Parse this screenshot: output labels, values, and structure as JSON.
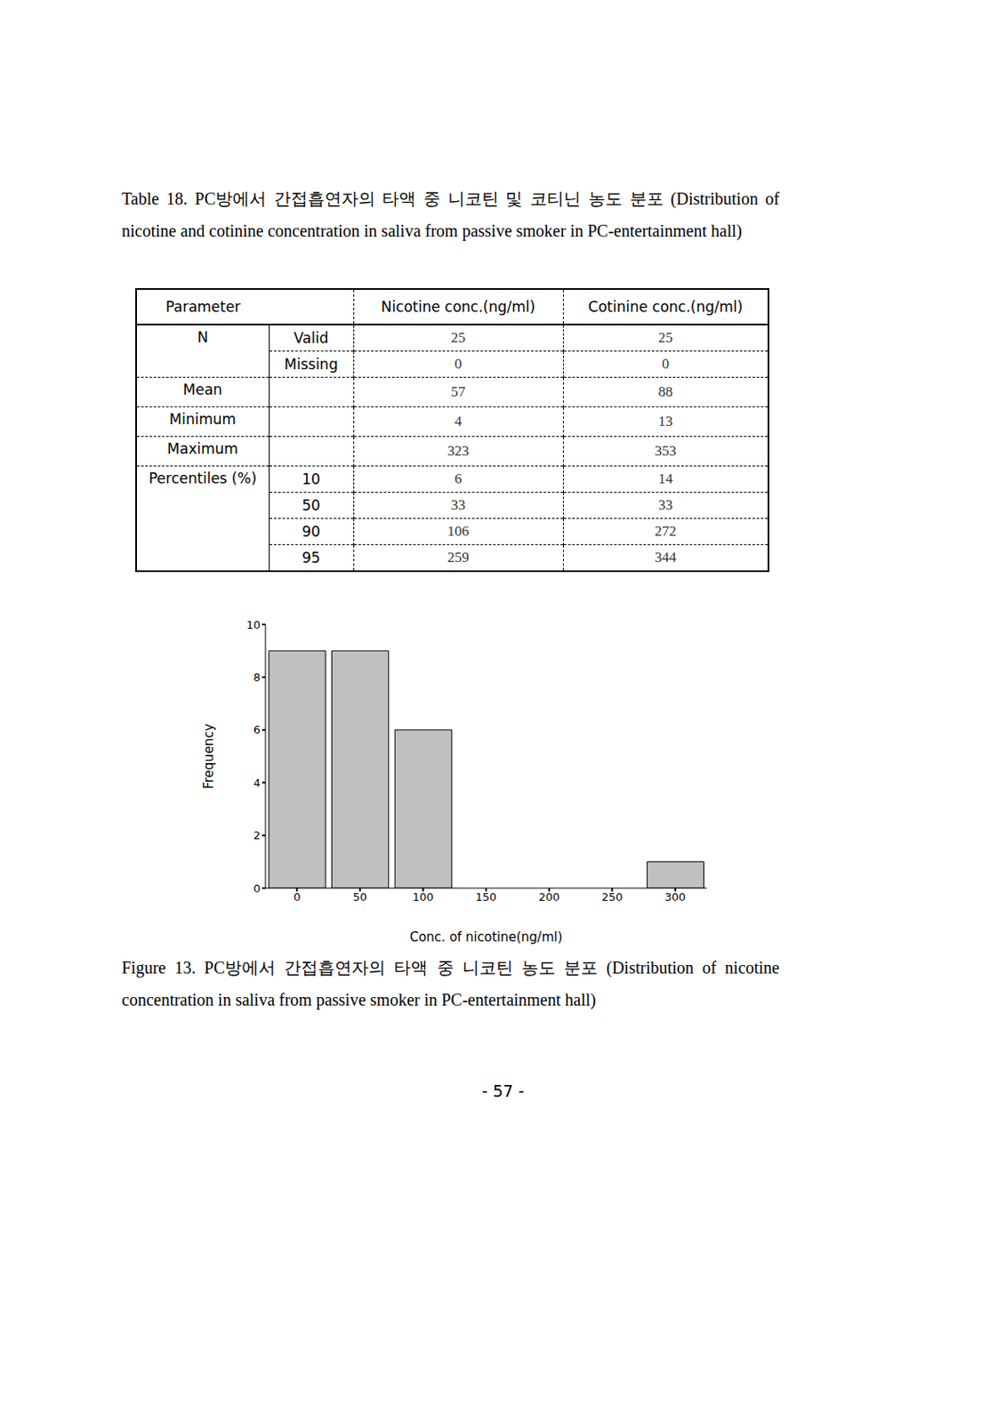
{
  "caption": {
    "table": "Table 18. PC방에서 간접흡연자의 타액 중 니코틴 및 코티닌 농도 분포 (Distribution of nicotine and cotinine concentration in saliva from passive smoker in PC-entertainment hall)",
    "figure": "Figure 13. PC방에서 간접흡연자의 타액 중 니코틴 농도 분포 (Distribution of nicotine concentration in saliva from passive smoker in PC-entertainment hall)"
  },
  "table": {
    "header": {
      "parameter": "Parameter",
      "columns": [
        "Nicotine conc.(ng/ml)",
        "Cotinine conc.(ng/ml)"
      ]
    },
    "rows": [
      {
        "label": "N",
        "sub": "Valid",
        "values": [
          25,
          25
        ]
      },
      {
        "label": null,
        "sub": "Missing",
        "values": [
          0,
          0
        ]
      },
      {
        "label": "Mean",
        "sub": null,
        "values": [
          57,
          88
        ]
      },
      {
        "label": "Minimum",
        "sub": null,
        "values": [
          4,
          13
        ]
      },
      {
        "label": "Maximum",
        "sub": null,
        "values": [
          323,
          353
        ]
      },
      {
        "label": "Percentiles (%)",
        "sub": 10,
        "values": [
          6,
          14
        ]
      },
      {
        "label": null,
        "sub": 50,
        "values": [
          33,
          33
        ]
      },
      {
        "label": null,
        "sub": 90,
        "values": [
          106,
          272
        ]
      },
      {
        "label": null,
        "sub": 95,
        "values": [
          259,
          344
        ]
      }
    ]
  },
  "chart_data": {
    "type": "histogram",
    "bins": [
      -25,
      25,
      75,
      125,
      175,
      225,
      275,
      325
    ],
    "counts": [
      9,
      9,
      6,
      0,
      0,
      0,
      1
    ],
    "color": "#c0c0c0",
    "xlim": [
      -25,
      325
    ],
    "xticks": [
      0,
      50,
      100,
      150,
      200,
      250,
      300
    ],
    "ylim": [
      0,
      10
    ],
    "yticks": [
      0,
      2,
      4,
      6,
      8,
      10
    ],
    "x_label": "Conc. of nicotine(ng/ml)",
    "y_label": "Frequency"
  },
  "page_number": "- 57 -"
}
